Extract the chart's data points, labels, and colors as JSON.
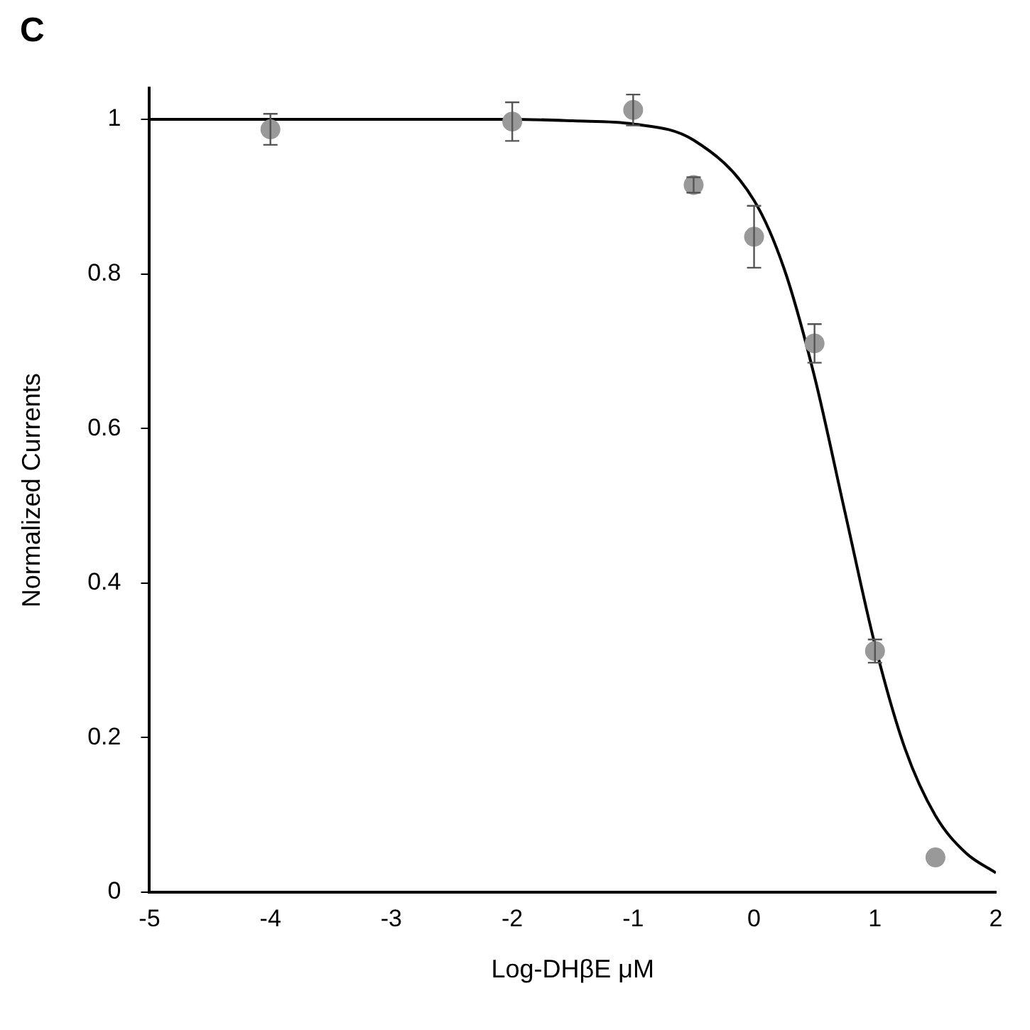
{
  "chart_data": {
    "type": "scatter",
    "xlabel": "Log-DHβE μM",
    "ylabel": "Normalized Currents",
    "annotations": [
      "C"
    ],
    "xlim": [
      -5,
      2
    ],
    "xticks": [
      -5,
      -4,
      -3,
      -2,
      -1,
      0,
      1,
      2
    ],
    "ylim": [
      0,
      1.04
    ],
    "yticks": [
      0,
      0.2,
      0.4,
      0.6,
      0.8,
      1
    ],
    "grid": false,
    "legend": false,
    "marker": "circle",
    "series": [
      {
        "color": "#999999",
        "x": [
          -4,
          -2,
          -1,
          -0.5,
          0,
          0.5,
          1,
          1.5
        ],
        "values": [
          0.987,
          0.997,
          1.012,
          0.915,
          0.848,
          0.71,
          0.312,
          0.045
        ],
        "errors": [
          0.02,
          0.025,
          0.02,
          0.01,
          0.04,
          0.025,
          0.015,
          null
        ]
      },
      {
        "type": "line",
        "color": "#000000",
        "marker": "none",
        "line_style": "solid",
        "x": [
          -5,
          -2,
          -1.5,
          -1,
          -0.5,
          0,
          0.25,
          0.5,
          0.75,
          1,
          1.25,
          1.5,
          1.75,
          2
        ],
        "values": [
          1,
          1,
          0.998,
          0.994,
          0.973,
          0.895,
          0.806,
          0.667,
          0.493,
          0.32,
          0.185,
          0.099,
          0.051,
          0.025
        ]
      }
    ]
  }
}
